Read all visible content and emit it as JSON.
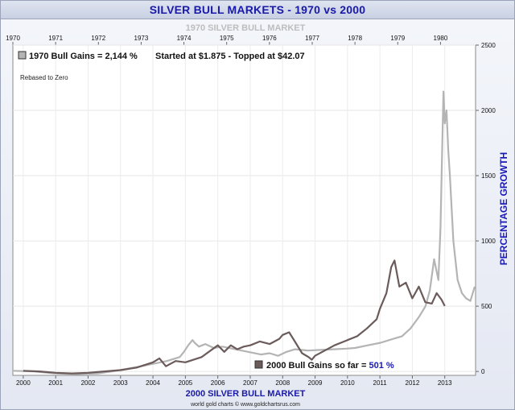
{
  "chart_data": {
    "type": "line",
    "title": "SILVER BULL MARKETS - 1970 vs 2000",
    "top_axis_label": "1970 SILVER BULL MARKET",
    "bottom_axis_label": "2000 SILVER BULL MARKET",
    "ylabel": "PERCENTAGE GROWTH",
    "ylim": [
      -30,
      2500
    ],
    "yticks": [
      0,
      500,
      1000,
      1500,
      2000,
      2500
    ],
    "top_xticks": [
      "1970",
      "1971",
      "1972",
      "1973",
      "1974",
      "1975",
      "1976",
      "1977",
      "1978",
      "1979",
      "1980"
    ],
    "bottom_xticks": [
      "2000",
      "2001",
      "2002",
      "2003",
      "2004",
      "2005",
      "2006",
      "2007",
      "2008",
      "2009",
      "2010",
      "2011",
      "2012",
      "2013"
    ],
    "grid": true,
    "annotations": {
      "legend_1970": "1970 Bull Gains = 2,144 %",
      "started": "Started at $1.875 - Topped at $42.07",
      "rebased": "Rebased to Zero",
      "legend_2000_prefix": "2000 Bull Gains so far = ",
      "legend_2000_value": "501 %",
      "credit": "world gold charts © www.goldchartsrus.com"
    },
    "series": [
      {
        "name": "1970 Bull Gains",
        "color": "#b4b4b4",
        "x": [
          1970.0,
          1970.5,
          1971.0,
          1971.5,
          1972.0,
          1972.5,
          1973.0,
          1973.3,
          1973.6,
          1973.9,
          1974.0,
          1974.1,
          1974.2,
          1974.25,
          1974.35,
          1974.5,
          1974.7,
          1974.9,
          1975.2,
          1975.5,
          1975.8,
          1976.0,
          1976.2,
          1976.4,
          1976.6,
          1976.9,
          1977.2,
          1977.5,
          1977.8,
          1978.0,
          1978.3,
          1978.6,
          1978.9,
          1979.1,
          1979.3,
          1979.5,
          1979.65,
          1979.75,
          1979.85,
          1979.95,
          1980.0,
          1980.04,
          1980.07,
          1980.1,
          1980.14,
          1980.18,
          1980.22,
          1980.3,
          1980.4,
          1980.5,
          1980.6,
          1980.7,
          1980.8
        ],
        "values": [
          5,
          0,
          -15,
          -20,
          -15,
          10,
          40,
          60,
          80,
          110,
          150,
          200,
          240,
          220,
          190,
          210,
          180,
          190,
          170,
          150,
          130,
          140,
          120,
          150,
          170,
          160,
          165,
          170,
          175,
          180,
          200,
          220,
          250,
          270,
          330,
          420,
          500,
          620,
          860,
          700,
          1100,
          1700,
          2144,
          1900,
          2000,
          1700,
          1500,
          1000,
          700,
          600,
          560,
          540,
          650
        ]
      },
      {
        "name": "2000 Bull Gains",
        "color": "#6b5b5b",
        "x": [
          2000.0,
          2000.5,
          2001.0,
          2001.5,
          2002.0,
          2002.5,
          2003.0,
          2003.5,
          2004.0,
          2004.2,
          2004.4,
          2004.7,
          2005.0,
          2005.5,
          2006.0,
          2006.2,
          2006.4,
          2006.6,
          2006.8,
          2007.0,
          2007.3,
          2007.6,
          2007.9,
          2008.0,
          2008.2,
          2008.4,
          2008.6,
          2008.8,
          2008.9,
          2009.0,
          2009.3,
          2009.6,
          2009.9,
          2010.0,
          2010.3,
          2010.6,
          2010.9,
          2011.0,
          2011.2,
          2011.35,
          2011.45,
          2011.6,
          2011.8,
          2012.0,
          2012.2,
          2012.4,
          2012.6,
          2012.75,
          2012.9,
          2013.0
        ],
        "values": [
          5,
          0,
          -10,
          -15,
          -10,
          0,
          10,
          30,
          70,
          100,
          40,
          80,
          70,
          110,
          200,
          150,
          200,
          170,
          190,
          200,
          230,
          210,
          250,
          280,
          300,
          220,
          140,
          110,
          90,
          120,
          160,
          200,
          230,
          240,
          270,
          330,
          400,
          480,
          600,
          800,
          850,
          650,
          680,
          560,
          650,
          530,
          520,
          600,
          550,
          501
        ]
      }
    ]
  }
}
